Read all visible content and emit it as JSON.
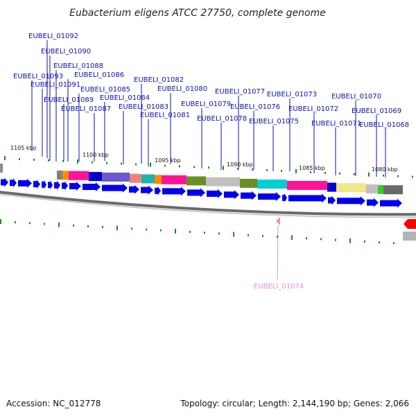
{
  "title": "Eubacterium eligens ATCC 27750, complete genome",
  "footer": {
    "accession": "Accession: NC_012778",
    "topology": "Topology: circular; Length: 2,144,190 bp; Genes: 2,066"
  },
  "colors": {
    "gene_label": "#0a12a8",
    "highlight_label": "#e58ec8",
    "forward_gene": "#0000ee",
    "tick_mark": "#1a8c1a",
    "backbone": "#8c8c8c"
  },
  "scale_labels": [
    "1105 kbp",
    "1100 kbp",
    "1095 kbp",
    "1090 kbp",
    "1085 kbp",
    "1080 kbp"
  ],
  "gene_labels": [
    "EUBELI_01092",
    "EUBELI_01090",
    "EUBELI_01088",
    "EUBELI_01093",
    "EUBELI_01086",
    "EUBELI_01091",
    "EUBELI_01085",
    "EUBELI_01089",
    "EUBELI_01084",
    "EUBELI_01087",
    "EUBELI_01082",
    "EUBELI_01080",
    "EUBELI_01083",
    "EUBELI_01081",
    "EUBELI_01079",
    "EUBELI_01078",
    "EUBELI_01077",
    "EUBELI_01076",
    "EUBELI_01075",
    "EUBELI_01073",
    "EUBELI_01072",
    "EUBELI_01071",
    "EUBELI_01070",
    "EUBELI_01069",
    "EUBELI_01068"
  ],
  "highlight_label": "EUBELI_01074",
  "feature_colors": [
    "#808080",
    "#ff8c00",
    "#ff1493",
    "#0000cd",
    "#6a5acd",
    "#f08080",
    "#20b2aa",
    "#ff8c00",
    "#ff1493",
    "#6b8e23",
    "#c0c0c0",
    "#6b8e23",
    "#00ced1",
    "#ff1493",
    "#0000cd",
    "#f0e68c",
    "#c0c0c0",
    "#32cd32",
    "#696969"
  ]
}
